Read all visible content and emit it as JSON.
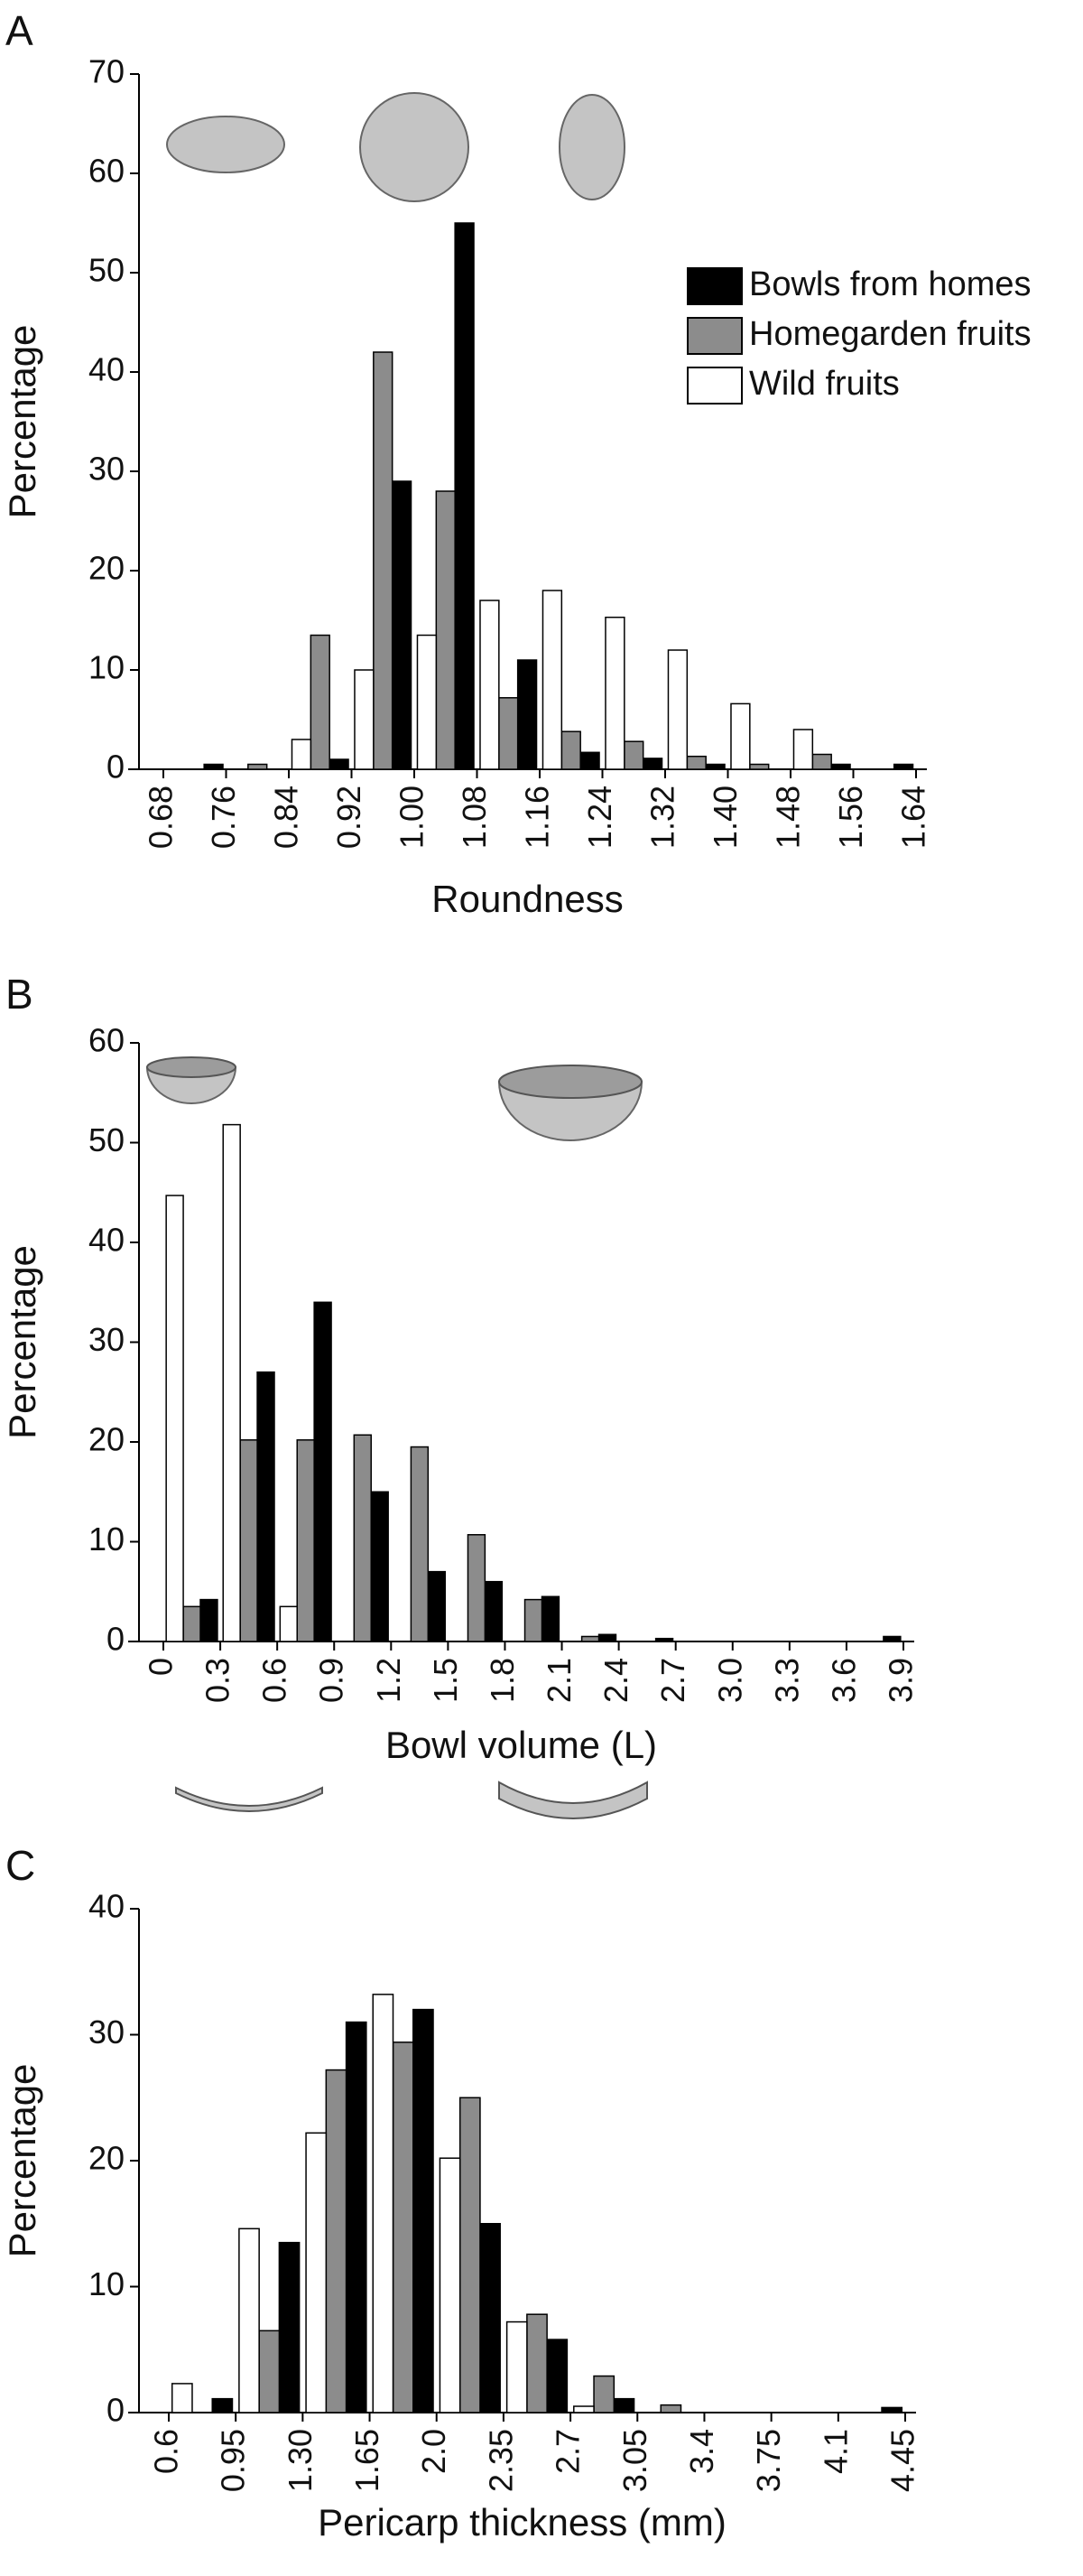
{
  "chart_data": [
    {
      "type": "histogram",
      "panel": "A",
      "xlabel": "Roundness",
      "ylabel": "Percentage",
      "bins": [
        0.68,
        0.76,
        0.84,
        0.92,
        {
          "value": 1,
          "label": "1.00"
        },
        1.08,
        1.16,
        1.24,
        1.32,
        {
          "value": 1.4,
          "label": "1.40"
        },
        1.48,
        1.56,
        1.64
      ],
      "ylim": [
        0,
        70
      ],
      "yticks": [
        0,
        10,
        20,
        30,
        40,
        50,
        60,
        70
      ],
      "legend": "upper right",
      "edgecolor": "#000000",
      "series": [
        {
          "name": "Bowls from homes",
          "color": "#000000",
          "values": [
            0.5,
            0,
            1,
            29,
            55,
            11,
            1.7,
            1.1,
            0.5,
            0,
            0.5,
            0.5
          ]
        },
        {
          "name": "Homegarden fruits",
          "color": "#8c8c8c",
          "values": [
            0,
            0.5,
            13.5,
            42,
            28,
            7.2,
            3.8,
            2.8,
            1.3,
            0.5,
            1.5,
            0
          ]
        },
        {
          "name": "Wild fruits",
          "color": "#ffffff",
          "values": [
            0,
            0,
            3,
            10,
            13.5,
            17,
            18,
            15.3,
            12,
            6.6,
            4,
            0
          ]
        }
      ]
    },
    {
      "type": "histogram",
      "panel": "B",
      "xlabel": "Bowl volume (L)",
      "ylabel": "Percentage",
      "bins": [
        0,
        0.3,
        0.6,
        0.9,
        1.2,
        1.5,
        1.8,
        2.1,
        2.4,
        2.7,
        {
          "value": 3,
          "label": "3.0"
        },
        3.3,
        3.6,
        3.9
      ],
      "ylim": [
        0,
        60
      ],
      "yticks": [
        0,
        10,
        20,
        30,
        40,
        50,
        60
      ],
      "edgecolor": "#000000",
      "series": [
        {
          "name": "Bowls from homes",
          "color": "#000000",
          "values": [
            4.2,
            27,
            34,
            15,
            7,
            6,
            4.5,
            0.7,
            0.3,
            0,
            0,
            0,
            0.5
          ]
        },
        {
          "name": "Homegarden fruits",
          "color": "#8c8c8c",
          "values": [
            3.5,
            20.2,
            20.2,
            20.7,
            19.5,
            10.7,
            4.2,
            0.5,
            0,
            0,
            0,
            0,
            0
          ]
        },
        {
          "name": "Wild fruits",
          "color": "#ffffff",
          "values": [
            44.7,
            51.8,
            3.5,
            0,
            0,
            0,
            0,
            0,
            0,
            0,
            0,
            0,
            0
          ]
        }
      ]
    },
    {
      "type": "histogram",
      "panel": "C",
      "xlabel": "Pericarp thickness (mm)",
      "ylabel": "Percentage",
      "bins": [
        0.6,
        0.95,
        {
          "value": 1.3,
          "label": "1.30"
        },
        1.65,
        {
          "value": 2,
          "label": "2.0"
        },
        2.35,
        2.7,
        3.05,
        3.4,
        3.75,
        4.1,
        4.45
      ],
      "ylim": [
        0,
        40
      ],
      "yticks": [
        0,
        10,
        20,
        30,
        40
      ],
      "edgecolor": "#000000",
      "series": [
        {
          "name": "Bowls from homes",
          "color": "#000000",
          "values": [
            1.1,
            13.5,
            31,
            32,
            15,
            5.8,
            1.1,
            0,
            0,
            0,
            0.4
          ]
        },
        {
          "name": "Homegarden fruits",
          "color": "#8c8c8c",
          "values": [
            0,
            6.5,
            27.2,
            29.4,
            25,
            7.8,
            2.9,
            0.6,
            0,
            0,
            0
          ]
        },
        {
          "name": "Wild fruits",
          "color": "#ffffff",
          "values": [
            2.3,
            14.6,
            22.2,
            33.2,
            20.2,
            7.2,
            0.5,
            0,
            0,
            0,
            0
          ]
        }
      ]
    }
  ]
}
